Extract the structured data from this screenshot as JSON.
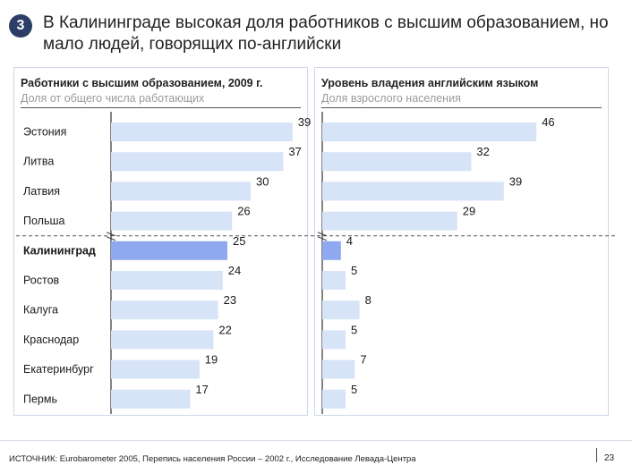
{
  "slide_number": "3",
  "title": "В Калининграде высокая доля работников с высшим образованием, но мало людей, говорящих по-английски",
  "footer": {
    "source": "ИСТОЧНИК: Eurobarometer 2005, Перепись населения России – 2002 г., Исследование Левада-Центра",
    "page": "23"
  },
  "colors": {
    "bar": "#d7e3f7",
    "highlight_bar": "#8fa9f0",
    "badge": "#2c3e66"
  },
  "chart_data": {
    "type": "bar",
    "orientation": "horizontal",
    "categories": [
      "Эстония",
      "Литва",
      "Латвия",
      "Польша",
      "Калининград",
      "Ростов",
      "Калуга",
      "Краснодар",
      "Екатеринбург",
      "Пермь"
    ],
    "highlight": "Калининград",
    "series": [
      {
        "name": "Работники с высшим образованием, 2009 г.",
        "subtitle": "Доля от общего числа работающих",
        "values": [
          39,
          37,
          30,
          26,
          25,
          24,
          23,
          22,
          19,
          17
        ],
        "axis_break_before_index": 4
      },
      {
        "name": "Уровень владения английским языком",
        "subtitle": "Доля взрослого населения",
        "values": [
          46,
          32,
          39,
          29,
          4,
          5,
          8,
          5,
          7,
          5
        ],
        "axis_break_before_index": 4
      }
    ]
  }
}
